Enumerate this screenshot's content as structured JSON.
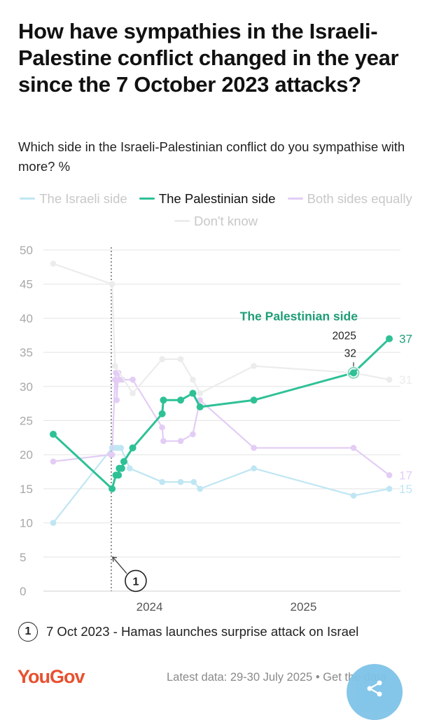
{
  "chart_data": {
    "type": "line",
    "title": "How have sympathies in the Israeli-Palestine conflict changed in the year since the 7 October 2023 attacks?",
    "subtitle": "Which side in the Israeli-Palestinian conflict do you sympathise with more? %",
    "ylim": [
      0,
      50
    ],
    "yticks": [
      0,
      5,
      10,
      15,
      20,
      25,
      30,
      35,
      40,
      45,
      50
    ],
    "xticks": [
      "2024",
      "2025"
    ],
    "grid": true,
    "legend_placement": "top",
    "highlighted_series": "The Palestinian side",
    "series": [
      {
        "name": "The Israeli side",
        "color": "#bfe6f3",
        "points": [
          {
            "x": "2023-05-22",
            "y": 10
          },
          {
            "x": "2023-10-09",
            "y": 21
          },
          {
            "x": "2023-10-16",
            "y": 21
          },
          {
            "x": "2023-10-23",
            "y": 21
          },
          {
            "x": "2023-10-30",
            "y": 21
          },
          {
            "x": "2023-11-20",
            "y": 18
          },
          {
            "x": "2024-02-05",
            "y": 16
          },
          {
            "x": "2024-03-20",
            "y": 16
          },
          {
            "x": "2024-04-20",
            "y": 16
          },
          {
            "x": "2024-05-05",
            "y": 15
          },
          {
            "x": "2024-09-10",
            "y": 18
          },
          {
            "x": "2025-05-05",
            "y": 14
          },
          {
            "x": "2025-07-29",
            "y": 15
          }
        ],
        "end_label": "15"
      },
      {
        "name": "The Palestinian side",
        "color": "#2ec196",
        "points": [
          {
            "x": "2023-05-22",
            "y": 23
          },
          {
            "x": "2023-10-09",
            "y": 15
          },
          {
            "x": "2023-10-18",
            "y": 17
          },
          {
            "x": "2023-10-24",
            "y": 17
          },
          {
            "x": "2023-10-26",
            "y": 18
          },
          {
            "x": "2023-11-01",
            "y": 18
          },
          {
            "x": "2023-11-06",
            "y": 19
          },
          {
            "x": "2023-11-27",
            "y": 21
          },
          {
            "x": "2024-02-05",
            "y": 26
          },
          {
            "x": "2024-02-08",
            "y": 28
          },
          {
            "x": "2024-03-20",
            "y": 28
          },
          {
            "x": "2024-04-18",
            "y": 29
          },
          {
            "x": "2024-05-05",
            "y": 27
          },
          {
            "x": "2024-09-10",
            "y": 28
          },
          {
            "x": "2025-05-05",
            "y": 32
          },
          {
            "x": "2025-07-29",
            "y": 37
          }
        ],
        "end_label": "37",
        "annotation": {
          "label": "The Palestinian side",
          "point_label_year": "2025",
          "point_value": "32"
        }
      },
      {
        "name": "Both sides equally",
        "color": "#e3cdf5",
        "points": [
          {
            "x": "2023-05-22",
            "y": 19
          },
          {
            "x": "2023-10-06",
            "y": 20
          },
          {
            "x": "2023-10-09",
            "y": 20
          },
          {
            "x": "2023-10-16",
            "y": 31
          },
          {
            "x": "2023-10-18",
            "y": 32
          },
          {
            "x": "2023-10-20",
            "y": 28
          },
          {
            "x": "2023-10-24",
            "y": 32
          },
          {
            "x": "2023-10-26",
            "y": 31
          },
          {
            "x": "2023-11-02",
            "y": 31
          },
          {
            "x": "2023-11-27",
            "y": 31
          },
          {
            "x": "2024-02-05",
            "y": 24
          },
          {
            "x": "2024-02-08",
            "y": 22
          },
          {
            "x": "2024-03-20",
            "y": 22
          },
          {
            "x": "2024-04-18",
            "y": 23
          },
          {
            "x": "2024-05-05",
            "y": 28
          },
          {
            "x": "2024-09-10",
            "y": 21
          },
          {
            "x": "2025-05-05",
            "y": 21
          },
          {
            "x": "2025-07-29",
            "y": 17
          }
        ],
        "end_label": "17"
      },
      {
        "name": "Don't know",
        "color": "#ececec",
        "points": [
          {
            "x": "2023-05-22",
            "y": 48
          },
          {
            "x": "2023-10-09",
            "y": 45
          },
          {
            "x": "2023-10-16",
            "y": 33
          },
          {
            "x": "2023-11-27",
            "y": 29
          },
          {
            "x": "2024-02-05",
            "y": 34
          },
          {
            "x": "2024-03-20",
            "y": 34
          },
          {
            "x": "2024-04-18",
            "y": 31
          },
          {
            "x": "2024-05-05",
            "y": 29
          },
          {
            "x": "2024-09-10",
            "y": 33
          },
          {
            "x": "2025-05-05",
            "y": 32
          },
          {
            "x": "2025-07-29",
            "y": 31
          }
        ],
        "end_label": "31"
      }
    ],
    "event_marker": {
      "x": "2023-10-07",
      "number": "1",
      "text": "7 Oct 2023 - Hamas launches surprise attack on Israel"
    }
  },
  "legend": [
    {
      "label": "The Israeli side",
      "color": "#bfe6f3",
      "active": false
    },
    {
      "label": "The Palestinian side",
      "color": "#2ec196",
      "active": true
    },
    {
      "label": "Both sides equally",
      "color": "#e3cdf5",
      "active": false
    },
    {
      "label": "Don't know",
      "color": "#ececec",
      "active": false
    }
  ],
  "footer": {
    "logo": "YouGov",
    "source": "Latest data: 29-30 July 2025 • Get the data",
    "share_icon": "share-icon"
  }
}
